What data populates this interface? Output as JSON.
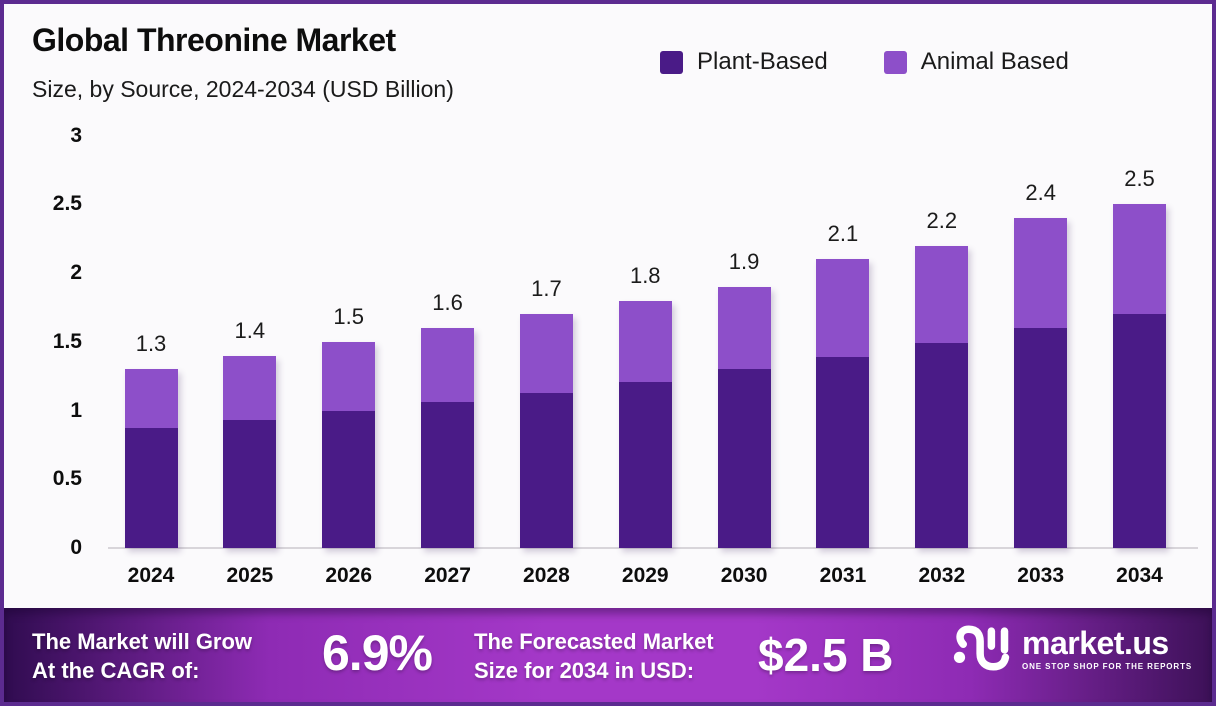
{
  "title": "Global Threonine Market",
  "subtitle": "Size, by Source, 2024-2034 (USD Billion)",
  "colors": {
    "plant_based": "#4A1B87",
    "animal_based": "#8D4FC9",
    "page_border": "#5C2B90",
    "banner_center": "#A438C8",
    "banner_edge": "#300C50",
    "axis_line": "#D8D5DA"
  },
  "legend": [
    {
      "label": "Plant-Based",
      "color": "#4A1B87"
    },
    {
      "label": "Animal Based",
      "color": "#8D4FC9"
    }
  ],
  "chart_data": {
    "type": "bar",
    "stacked": true,
    "title": "Global Threonine Market Size, by Source, 2024-2034 (USD Billion)",
    "categories": [
      "2024",
      "2025",
      "2026",
      "2027",
      "2028",
      "2029",
      "2030",
      "2031",
      "2032",
      "2033",
      "2034"
    ],
    "series": [
      {
        "name": "Plant-Based",
        "color": "#4A1B87",
        "values": [
          0.87,
          0.93,
          1.0,
          1.06,
          1.13,
          1.21,
          1.3,
          1.39,
          1.49,
          1.6,
          1.7
        ]
      },
      {
        "name": "Animal Based",
        "color": "#8D4FC9",
        "values": [
          0.43,
          0.47,
          0.5,
          0.54,
          0.57,
          0.59,
          0.6,
          0.71,
          0.71,
          0.8,
          0.8
        ]
      }
    ],
    "total_labels": [
      "1.3",
      "1.4",
      "1.5",
      "1.6",
      "1.7",
      "1.8",
      "1.9",
      "2.1",
      "2.2",
      "2.4",
      "2.5"
    ],
    "xlabel": "",
    "ylabel": "",
    "ylim": [
      0,
      3
    ],
    "yticks": [
      "0",
      "0.5",
      "1",
      "1.5",
      "2",
      "2.5",
      "3"
    ],
    "grid": false,
    "legend_position": "top-right"
  },
  "banner": {
    "cagr_label_line1": "The Market will Grow",
    "cagr_label_line2": "At the CAGR of:",
    "cagr_value": "6.9%",
    "forecast_label_line1": "The Forecasted Market",
    "forecast_label_line2": "Size for 2034 in USD:",
    "forecast_value": "$2.5 B",
    "logo_text": "market.us",
    "logo_tagline": "ONE STOP SHOP FOR THE REPORTS"
  }
}
